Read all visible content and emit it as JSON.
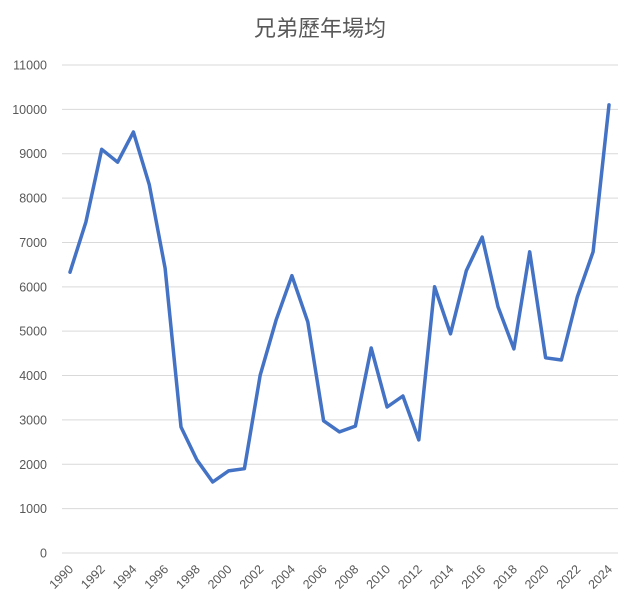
{
  "chart_data": {
    "type": "line",
    "title": "兄弟歷年場均",
    "xlabel": "",
    "ylabel": "",
    "ylim": [
      0,
      11000
    ],
    "yticks": [
      0,
      1000,
      2000,
      3000,
      4000,
      5000,
      6000,
      7000,
      8000,
      9000,
      10000,
      11000
    ],
    "xtick_labels": [
      "1990",
      "1992",
      "1994",
      "1996",
      "1998",
      "2000",
      "2002",
      "2004",
      "2006",
      "2008",
      "2010",
      "2012",
      "2014",
      "2016",
      "2018",
      "2020",
      "2022",
      "2024"
    ],
    "grid": true,
    "legend": "none",
    "series": [
      {
        "name": "兄弟歷年場均",
        "color": "#4472c4",
        "x": [
          1990,
          1991,
          1992,
          1993,
          1994,
          1995,
          1996,
          1997,
          1998,
          1999,
          2000,
          2001,
          2002,
          2003,
          2004,
          2005,
          2006,
          2007,
          2008,
          2009,
          2010,
          2011,
          2012,
          2013,
          2014,
          2015,
          2016,
          2017,
          2018,
          2019,
          2020,
          2021,
          2022,
          2023,
          2024
        ],
        "values": [
          6330,
          7460,
          9100,
          8810,
          9490,
          8300,
          6420,
          2840,
          2100,
          1600,
          1850,
          1900,
          4010,
          5250,
          6250,
          5210,
          2980,
          2730,
          2860,
          4620,
          3290,
          3540,
          2550,
          6000,
          4940,
          6360,
          7120,
          5550,
          4600,
          6790,
          4400,
          4350,
          5770,
          6790,
          10100
        ]
      }
    ]
  }
}
